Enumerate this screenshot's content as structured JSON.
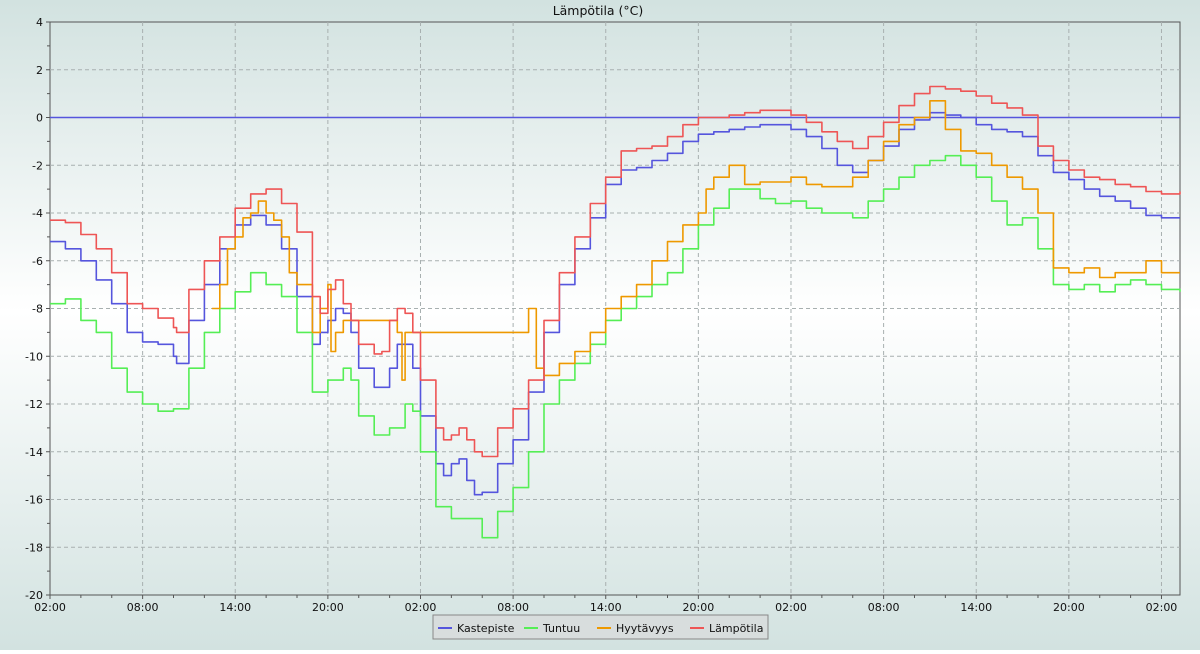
{
  "chart_data": {
    "type": "line",
    "title": "Lämpötila (°C)",
    "xlabel": "",
    "ylabel": "",
    "x_unit": "hours",
    "xlim": [
      0,
      73.2
    ],
    "ylim": [
      -20,
      4
    ],
    "yticks": [
      4,
      2,
      0,
      -2,
      -4,
      -6,
      -8,
      -10,
      -12,
      -14,
      -16,
      -18,
      -20
    ],
    "xticks": [
      {
        "x": 0,
        "label": "02:00"
      },
      {
        "x": 6,
        "label": "08:00"
      },
      {
        "x": 12,
        "label": "14:00"
      },
      {
        "x": 18,
        "label": "20:00"
      },
      {
        "x": 24,
        "label": "02:00"
      },
      {
        "x": 30,
        "label": "08:00"
      },
      {
        "x": 36,
        "label": "14:00"
      },
      {
        "x": 42,
        "label": "20:00"
      },
      {
        "x": 48,
        "label": "02:00"
      },
      {
        "x": 54,
        "label": "08:00"
      },
      {
        "x": 60,
        "label": "14:00"
      },
      {
        "x": 66,
        "label": "20:00"
      },
      {
        "x": 72,
        "label": "02:00"
      }
    ],
    "grid": true,
    "legend_position": "bottom-center",
    "reference_line": {
      "y": 0,
      "color": "#5555dd"
    },
    "series": [
      {
        "name": "Kastepiste",
        "color": "#5555dd",
        "points": [
          [
            0,
            -5.2
          ],
          [
            1,
            -5.5
          ],
          [
            2,
            -6
          ],
          [
            3,
            -6.8
          ],
          [
            4,
            -7.8
          ],
          [
            5,
            -9
          ],
          [
            6,
            -9.4
          ],
          [
            7,
            -9.5
          ],
          [
            8,
            -10
          ],
          [
            8.2,
            -10.3
          ],
          [
            9,
            -8.5
          ],
          [
            10,
            -7
          ],
          [
            11,
            -5.5
          ],
          [
            12,
            -4.5
          ],
          [
            13,
            -4.1
          ],
          [
            14,
            -4.5
          ],
          [
            15,
            -5.5
          ],
          [
            16,
            -7.5
          ],
          [
            17,
            -9.5
          ],
          [
            17.5,
            -9
          ],
          [
            18,
            -8.5
          ],
          [
            18.5,
            -8
          ],
          [
            19,
            -8.2
          ],
          [
            19.5,
            -9
          ],
          [
            20,
            -10.5
          ],
          [
            21,
            -11.3
          ],
          [
            22,
            -10.5
          ],
          [
            22.5,
            -9.5
          ],
          [
            23,
            -9.5
          ],
          [
            23.5,
            -10.5
          ],
          [
            24,
            -12.5
          ],
          [
            25,
            -14.5
          ],
          [
            25.5,
            -15
          ],
          [
            26,
            -14.5
          ],
          [
            26.5,
            -14.3
          ],
          [
            27,
            -15.2
          ],
          [
            27.5,
            -15.8
          ],
          [
            28,
            -15.7
          ],
          [
            29,
            -14.5
          ],
          [
            30,
            -13.5
          ],
          [
            31,
            -11.5
          ],
          [
            32,
            -9
          ],
          [
            33,
            -7
          ],
          [
            34,
            -5.5
          ],
          [
            35,
            -4.2
          ],
          [
            36,
            -2.8
          ],
          [
            37,
            -2.2
          ],
          [
            38,
            -2.1
          ],
          [
            39,
            -1.8
          ],
          [
            40,
            -1.5
          ],
          [
            41,
            -1
          ],
          [
            42,
            -0.7
          ],
          [
            43,
            -0.6
          ],
          [
            44,
            -0.5
          ],
          [
            45,
            -0.4
          ],
          [
            46,
            -0.3
          ],
          [
            47,
            -0.3
          ],
          [
            48,
            -0.5
          ],
          [
            49,
            -0.8
          ],
          [
            50,
            -1.3
          ],
          [
            51,
            -2
          ],
          [
            52,
            -2.3
          ],
          [
            53,
            -1.8
          ],
          [
            54,
            -1.2
          ],
          [
            55,
            -0.5
          ],
          [
            56,
            -0.1
          ],
          [
            57,
            0.2
          ],
          [
            58,
            0.1
          ],
          [
            59,
            0
          ],
          [
            60,
            -0.3
          ],
          [
            61,
            -0.5
          ],
          [
            62,
            -0.6
          ],
          [
            63,
            -0.8
          ],
          [
            64,
            -1.6
          ],
          [
            65,
            -2.3
          ],
          [
            66,
            -2.6
          ],
          [
            67,
            -3
          ],
          [
            68,
            -3.3
          ],
          [
            69,
            -3.5
          ],
          [
            70,
            -3.8
          ],
          [
            71,
            -4.1
          ],
          [
            72,
            -4.2
          ],
          [
            73.2,
            -4.2
          ]
        ]
      },
      {
        "name": "Tuntuu",
        "color": "#55ee55",
        "points": [
          [
            0,
            -7.8
          ],
          [
            1,
            -7.6
          ],
          [
            2,
            -8.5
          ],
          [
            3,
            -9
          ],
          [
            4,
            -10.5
          ],
          [
            5,
            -11.5
          ],
          [
            6,
            -12
          ],
          [
            7,
            -12.3
          ],
          [
            8,
            -12.2
          ],
          [
            9,
            -10.5
          ],
          [
            10,
            -9
          ],
          [
            11,
            -8
          ],
          [
            12,
            -7.3
          ],
          [
            13,
            -6.5
          ],
          [
            14,
            -7
          ],
          [
            15,
            -7.5
          ],
          [
            16,
            -9
          ],
          [
            17,
            -11.5
          ],
          [
            18,
            -11
          ],
          [
            19,
            -10.5
          ],
          [
            19.5,
            -11
          ],
          [
            20,
            -12.5
          ],
          [
            21,
            -13.3
          ],
          [
            22,
            -13
          ],
          [
            23,
            -12
          ],
          [
            23.5,
            -12.3
          ],
          [
            24,
            -14
          ],
          [
            25,
            -16.3
          ],
          [
            26,
            -16.8
          ],
          [
            27,
            -16.8
          ],
          [
            28,
            -17.6
          ],
          [
            29,
            -16.5
          ],
          [
            30,
            -15.5
          ],
          [
            31,
            -14
          ],
          [
            32,
            -12
          ],
          [
            33,
            -11
          ],
          [
            34,
            -10.3
          ],
          [
            35,
            -9.5
          ],
          [
            36,
            -8.5
          ],
          [
            37,
            -8
          ],
          [
            38,
            -7.5
          ],
          [
            39,
            -7
          ],
          [
            40,
            -6.5
          ],
          [
            41,
            -5.5
          ],
          [
            42,
            -4.5
          ],
          [
            43,
            -3.8
          ],
          [
            44,
            -3
          ],
          [
            45,
            -3
          ],
          [
            46,
            -3.4
          ],
          [
            47,
            -3.6
          ],
          [
            48,
            -3.5
          ],
          [
            49,
            -3.8
          ],
          [
            50,
            -4
          ],
          [
            51,
            -4
          ],
          [
            52,
            -4.2
          ],
          [
            53,
            -3.5
          ],
          [
            54,
            -3
          ],
          [
            55,
            -2.5
          ],
          [
            56,
            -2
          ],
          [
            57,
            -1.8
          ],
          [
            58,
            -1.6
          ],
          [
            59,
            -2
          ],
          [
            60,
            -2.5
          ],
          [
            61,
            -3.5
          ],
          [
            62,
            -4.5
          ],
          [
            63,
            -4.2
          ],
          [
            64,
            -5.5
          ],
          [
            65,
            -7
          ],
          [
            66,
            -7.2
          ],
          [
            67,
            -7
          ],
          [
            68,
            -7.3
          ],
          [
            69,
            -7
          ],
          [
            70,
            -6.8
          ],
          [
            71,
            -7
          ],
          [
            72,
            -7.2
          ],
          [
            73.2,
            -7.3
          ]
        ]
      },
      {
        "name": "Hyytävyys",
        "color": "#ee9900",
        "points": [
          [
            10.5,
            -8
          ],
          [
            11,
            -7
          ],
          [
            11.5,
            -5.5
          ],
          [
            12,
            -5
          ],
          [
            12.5,
            -4.2
          ],
          [
            13,
            -4
          ],
          [
            13.5,
            -3.5
          ],
          [
            14,
            -4
          ],
          [
            14.5,
            -4.3
          ],
          [
            15,
            -5
          ],
          [
            15.5,
            -6.5
          ],
          [
            16,
            -7
          ],
          [
            17,
            -9
          ],
          [
            17.5,
            -8
          ],
          [
            18,
            -7
          ],
          [
            18.2,
            -9.8
          ],
          [
            18.5,
            -9
          ],
          [
            19,
            -8.5
          ],
          [
            22.5,
            -9
          ],
          [
            22.8,
            -11
          ],
          [
            23,
            -9
          ],
          [
            31,
            -8
          ],
          [
            31.5,
            -10.5
          ],
          [
            32,
            -10.8
          ],
          [
            33,
            -10.3
          ],
          [
            34,
            -9.8
          ],
          [
            35,
            -9
          ],
          [
            36,
            -8
          ],
          [
            37,
            -7.5
          ],
          [
            38,
            -7
          ],
          [
            39,
            -6
          ],
          [
            40,
            -5.2
          ],
          [
            41,
            -4.5
          ],
          [
            42,
            -4
          ],
          [
            42.5,
            -3
          ],
          [
            43,
            -2.5
          ],
          [
            44,
            -2
          ],
          [
            45,
            -2.8
          ],
          [
            46,
            -2.7
          ],
          [
            47,
            -2.7
          ],
          [
            48,
            -2.5
          ],
          [
            49,
            -2.8
          ],
          [
            50,
            -2.9
          ],
          [
            51,
            -2.9
          ],
          [
            52,
            -2.5
          ],
          [
            53,
            -1.8
          ],
          [
            54,
            -1
          ],
          [
            55,
            -0.3
          ],
          [
            56,
            0
          ],
          [
            57,
            0.7
          ],
          [
            58,
            -0.5
          ],
          [
            59,
            -1.4
          ],
          [
            60,
            -1.5
          ],
          [
            61,
            -2
          ],
          [
            62,
            -2.5
          ],
          [
            63,
            -3
          ],
          [
            64,
            -4
          ],
          [
            65,
            -6.3
          ],
          [
            66,
            -6.5
          ],
          [
            67,
            -6.3
          ],
          [
            68,
            -6.7
          ],
          [
            69,
            -6.5
          ],
          [
            70,
            -6.5
          ],
          [
            71,
            -6
          ],
          [
            72,
            -6.5
          ],
          [
            73.2,
            -6.5
          ]
        ]
      },
      {
        "name": "Lämpötila",
        "color": "#ee5555",
        "points": [
          [
            0,
            -4.3
          ],
          [
            1,
            -4.4
          ],
          [
            2,
            -4.9
          ],
          [
            3,
            -5.5
          ],
          [
            4,
            -6.5
          ],
          [
            5,
            -7.8
          ],
          [
            6,
            -8
          ],
          [
            7,
            -8.4
          ],
          [
            8,
            -8.8
          ],
          [
            8.2,
            -9
          ],
          [
            9,
            -7.2
          ],
          [
            10,
            -6
          ],
          [
            11,
            -5
          ],
          [
            12,
            -3.8
          ],
          [
            13,
            -3.2
          ],
          [
            14,
            -3
          ],
          [
            15,
            -3.6
          ],
          [
            16,
            -4.8
          ],
          [
            17,
            -7.5
          ],
          [
            17.5,
            -8.2
          ],
          [
            18,
            -7.2
          ],
          [
            18.5,
            -6.8
          ],
          [
            19,
            -7.8
          ],
          [
            19.5,
            -8.5
          ],
          [
            20,
            -9.5
          ],
          [
            21,
            -9.9
          ],
          [
            21.5,
            -9.8
          ],
          [
            22,
            -8.5
          ],
          [
            22.5,
            -8
          ],
          [
            23,
            -8.2
          ],
          [
            23.5,
            -9
          ],
          [
            24,
            -11
          ],
          [
            25,
            -13
          ],
          [
            25.5,
            -13.5
          ],
          [
            26,
            -13.3
          ],
          [
            26.5,
            -13
          ],
          [
            27,
            -13.5
          ],
          [
            27.5,
            -14
          ],
          [
            28,
            -14.2
          ],
          [
            29,
            -13
          ],
          [
            30,
            -12.2
          ],
          [
            31,
            -11
          ],
          [
            32,
            -8.5
          ],
          [
            33,
            -6.5
          ],
          [
            34,
            -5
          ],
          [
            35,
            -3.6
          ],
          [
            36,
            -2.5
          ],
          [
            37,
            -1.4
          ],
          [
            38,
            -1.3
          ],
          [
            39,
            -1.2
          ],
          [
            40,
            -0.8
          ],
          [
            41,
            -0.3
          ],
          [
            42,
            0
          ],
          [
            43,
            0
          ],
          [
            44,
            0.1
          ],
          [
            45,
            0.2
          ],
          [
            46,
            0.3
          ],
          [
            47,
            0.3
          ],
          [
            48,
            0.1
          ],
          [
            49,
            -0.2
          ],
          [
            50,
            -0.6
          ],
          [
            51,
            -1
          ],
          [
            52,
            -1.3
          ],
          [
            53,
            -0.8
          ],
          [
            54,
            -0.2
          ],
          [
            55,
            0.5
          ],
          [
            56,
            1
          ],
          [
            57,
            1.3
          ],
          [
            58,
            1.2
          ],
          [
            59,
            1.1
          ],
          [
            60,
            0.9
          ],
          [
            61,
            0.6
          ],
          [
            62,
            0.4
          ],
          [
            63,
            0.1
          ],
          [
            64,
            -1.2
          ],
          [
            65,
            -1.8
          ],
          [
            66,
            -2.2
          ],
          [
            67,
            -2.5
          ],
          [
            68,
            -2.6
          ],
          [
            69,
            -2.8
          ],
          [
            70,
            -2.9
          ],
          [
            71,
            -3.1
          ],
          [
            72,
            -3.2
          ],
          [
            73.2,
            -3.1
          ]
        ]
      }
    ]
  }
}
